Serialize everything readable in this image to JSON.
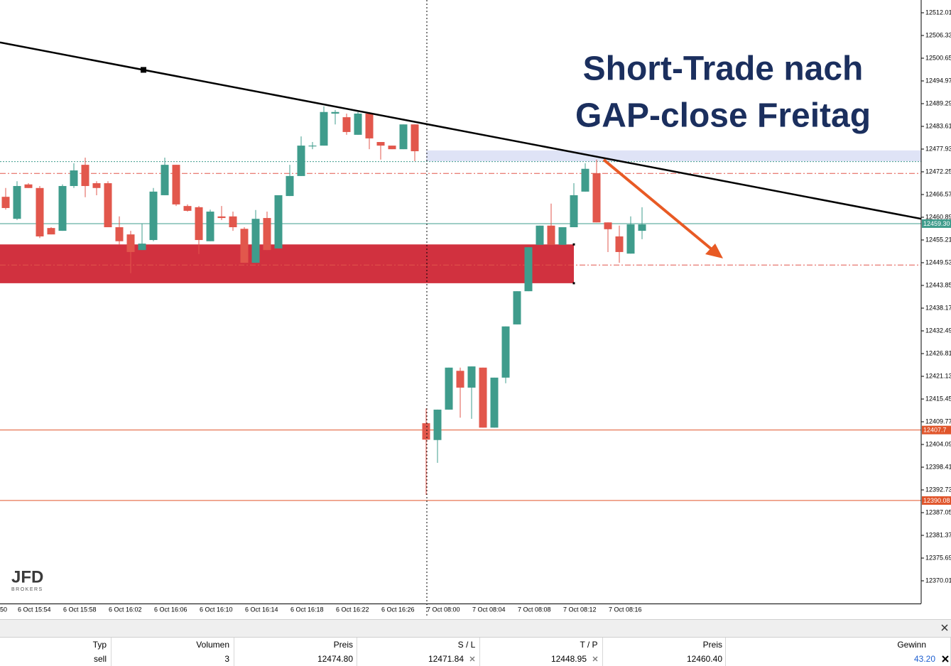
{
  "chart_data": {
    "type": "candlestick",
    "categories": [
      null,
      "6 Oct 15:54",
      null,
      null,
      null,
      "6 Oct 15:58",
      null,
      null,
      null,
      "6 Oct 16:02",
      null,
      null,
      null,
      "6 Oct 16:06",
      null,
      null,
      null,
      "6 Oct 16:10",
      null,
      null,
      null,
      "6 Oct 16:14",
      null,
      null,
      null,
      "6 Oct 16:18",
      null,
      null,
      null,
      "6 Oct 16:22",
      null,
      null,
      null,
      "6 Oct 16:26",
      null,
      null,
      null,
      "7 Oct 08:00",
      null,
      null,
      null,
      "7 Oct 08:04",
      null,
      null,
      null,
      "7 Oct 08:08",
      null,
      null,
      null,
      "7 Oct 08:12",
      null,
      null,
      null,
      "7 Oct 08:16",
      null,
      null,
      null
    ],
    "clipped_time_label": "50",
    "open": [
      12466.0,
      12460.5,
      12469.1,
      12468.2,
      12458.2,
      12457.5,
      12468.7,
      12474.0,
      12469.4,
      12469.4,
      12458.4,
      12456.6,
      12452.7,
      12455.2,
      12466.4,
      12474.0,
      12463.7,
      12463.4,
      12454.9,
      12461.1,
      12461.1,
      12458.0,
      12449.5,
      12460.7,
      12453.1,
      12466.2,
      12471.2,
      12478.6,
      12478.8,
      12486.8,
      12485.9,
      12481.5,
      12486.8,
      12479.7,
      12478.8,
      12477.9,
      12484.1,
      12409.4,
      12405.2,
      12412.8,
      12422.5,
      12418.3,
      12423.3,
      12408.3,
      12420.8,
      12434.1,
      12442.4,
      12454.0,
      12458.8,
      12454.0,
      12458.4,
      12467.3,
      12471.9,
      12459.6,
      12456.1,
      12451.8,
      12457.5
    ],
    "high": [
      12468.2,
      12469.9,
      12469.4,
      12468.7,
      12458.4,
      12469.1,
      12474.4,
      12475.8,
      12469.9,
      12469.9,
      12461.1,
      12457.5,
      12459.3,
      12468.2,
      12475.8,
      12474.0,
      12464.1,
      12463.7,
      12462.8,
      12463.7,
      12462.3,
      12458.4,
      12462.7,
      12462.3,
      12466.4,
      12474.0,
      12481.1,
      12479.7,
      12488.6,
      12487.7,
      12486.8,
      12487.2,
      12487.2,
      12479.7,
      12478.8,
      12484.1,
      12484.1,
      12413.1,
      12412.8,
      12423.3,
      12423.3,
      12423.6,
      12423.3,
      12420.8,
      12433.6,
      12442.4,
      12453.4,
      12458.8,
      12464.3,
      12458.4,
      12469.4,
      12474.4,
      12475.3,
      12459.6,
      12458.8,
      12461.1,
      12463.4
    ],
    "low": [
      12462.8,
      12460.2,
      12468.2,
      12455.7,
      12456.6,
      12457.5,
      12468.2,
      12465.9,
      12466.4,
      12458.4,
      12454.0,
      12446.9,
      12452.7,
      12454.9,
      12466.4,
      12463.7,
      12462.3,
      12451.7,
      12454.9,
      12460.2,
      12457.5,
      12449.5,
      12449.5,
      12452.7,
      12453.1,
      12466.2,
      12471.2,
      12477.9,
      12478.8,
      12484.1,
      12481.5,
      12481.5,
      12477.9,
      12475.3,
      12477.9,
      12477.9,
      12474.9,
      12391.5,
      12399.5,
      12412.8,
      12410.8,
      12410.5,
      12408.3,
      12408.3,
      12419.4,
      12434.1,
      12442.4,
      12454.0,
      12454.0,
      12454.0,
      12458.4,
      12467.3,
      12459.6,
      12452.2,
      12449.5,
      12451.8,
      12455.4
    ],
    "close": [
      12463.2,
      12468.7,
      12468.2,
      12456.1,
      12456.6,
      12468.7,
      12472.6,
      12468.7,
      12468.2,
      12458.4,
      12454.9,
      12452.2,
      12454.3,
      12467.3,
      12474.0,
      12464.1,
      12462.5,
      12455.2,
      12462.3,
      12460.7,
      12458.4,
      12449.5,
      12460.5,
      12452.7,
      12466.4,
      12471.2,
      12478.8,
      12478.8,
      12487.2,
      12487.2,
      12482.2,
      12486.8,
      12480.6,
      12478.8,
      12477.9,
      12484.1,
      12477.4,
      12405.3,
      12412.8,
      12423.3,
      12418.3,
      12423.6,
      12408.3,
      12420.8,
      12433.6,
      12442.4,
      12453.4,
      12458.8,
      12454.0,
      12458.4,
      12466.4,
      12473.0,
      12459.6,
      12457.9,
      12452.2,
      12459.1,
      12459.1
    ],
    "up_color": "#3f9c8c",
    "down_color": "#e2574c",
    "ylim": [
      12364.33,
      12515.2
    ],
    "yticks": [
      12370.01,
      12375.69,
      12381.37,
      12387.05,
      12392.73,
      12398.41,
      12404.09,
      12409.77,
      12415.45,
      12421.13,
      12426.81,
      12432.49,
      12438.17,
      12443.85,
      12449.53,
      12455.21,
      12460.89,
      12466.57,
      12472.25,
      12477.93,
      12483.61,
      12489.29,
      12494.97,
      12500.65,
      12506.33,
      12512.01
    ],
    "grid": false,
    "hlines": [
      {
        "value": 12474.8,
        "color": "#3f9c8c",
        "style": "dotted"
      },
      {
        "value": 12471.84,
        "color": "#e2574c",
        "style": "dashdot"
      },
      {
        "value": 12459.3,
        "label": "12459.30",
        "color": "#3f9c8c",
        "style": "solid"
      },
      {
        "value": 12448.95,
        "color": "#e2574c",
        "style": "dashdot"
      },
      {
        "value": 12407.7,
        "label": "12407.7",
        "color": "#e0552b",
        "style": "solid"
      },
      {
        "value": 12390.08,
        "label": "12390.08",
        "color": "#e0552b",
        "style": "solid"
      }
    ],
    "zones": [
      {
        "top": 12454.1,
        "bottom": 12444.4,
        "color": "#d1313f"
      },
      {
        "top": 12477.6,
        "bottom": 12474.9,
        "color": "#dfe3f6"
      }
    ],
    "trendline": {
      "values": [
        12504.6,
        12460.5
      ],
      "color": "#000000"
    },
    "annotation": [
      "Short-Trade nach",
      "GAP-close Freitag"
    ]
  },
  "logo": {
    "name": "JFD",
    "tagline": "BROKERS"
  },
  "orders": {
    "columns": [
      "Typ",
      "Volumen",
      "Preis",
      "S / L",
      "T / P",
      "Preis",
      "Gewinn"
    ],
    "rows": [
      [
        "sell",
        "3",
        "12474.80",
        "12471.84",
        "12448.95",
        "12460.40",
        "43.20"
      ]
    ]
  }
}
